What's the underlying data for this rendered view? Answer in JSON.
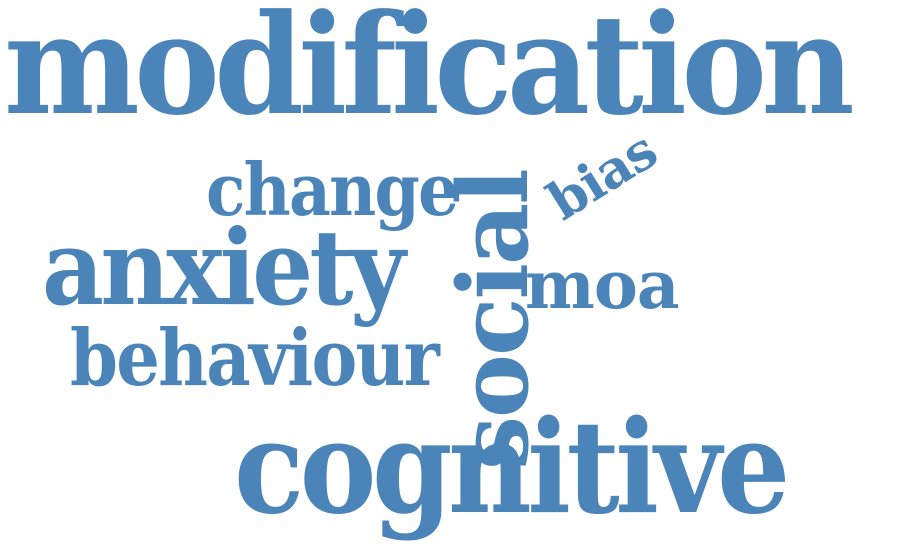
{
  "word_cloud": {
    "color": "#4a84b8",
    "words": {
      "modification": "modification",
      "anxiety": "anxiety",
      "change": "change",
      "behaviour": "behaviour",
      "moa": "moa",
      "cognitive": "cognitive",
      "social": "social",
      "bias": "bias"
    }
  }
}
